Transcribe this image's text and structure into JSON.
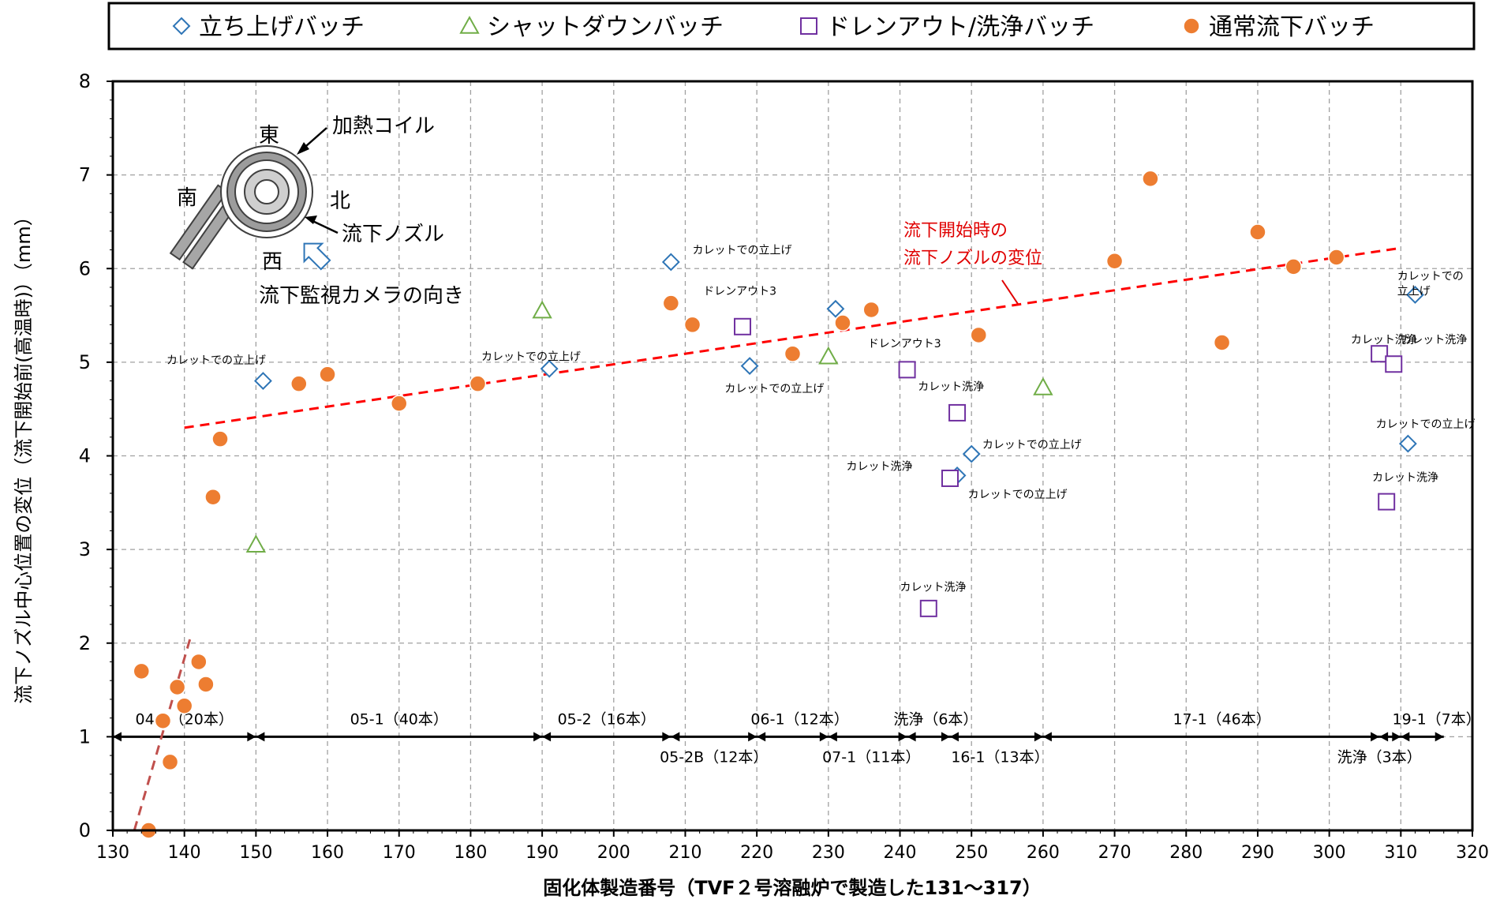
{
  "chart_data": {
    "type": "scatter",
    "title": "",
    "xlabel": "固化体製造番号（TVF２号溶融炉で製造した131～317）",
    "ylabel": "流下ノズル中心位置の変位（流下開始前(高温時)）（mm）",
    "xlim": [
      130,
      320
    ],
    "ylim": [
      0,
      8
    ],
    "x_ticks": [
      130,
      140,
      150,
      160,
      170,
      180,
      190,
      200,
      210,
      220,
      230,
      240,
      250,
      260,
      270,
      280,
      290,
      300,
      310,
      320
    ],
    "y_ticks": [
      0,
      1,
      2,
      3,
      4,
      5,
      6,
      7,
      8
    ],
    "grid": true,
    "legend_position": "top",
    "legend": [
      {
        "name": "立ち上げバッチ",
        "marker": "diamond",
        "color": "#2E75B6"
      },
      {
        "name": "シャットダウンバッチ",
        "marker": "triangle",
        "color": "#70AD47"
      },
      {
        "name": "ドレンアウト/洗浄バッチ",
        "marker": "square",
        "color": "#7030A0"
      },
      {
        "name": "通常流下バッチ",
        "marker": "circle",
        "color": "#ED7D31"
      }
    ],
    "series": [
      {
        "name": "立ち上げバッチ",
        "marker": "diamond",
        "color": "#2E75B6",
        "points": [
          [
            151,
            4.8
          ],
          [
            191,
            4.93
          ],
          [
            208,
            6.07
          ],
          [
            219,
            4.96
          ],
          [
            231,
            5.57
          ],
          [
            248,
            3.79
          ],
          [
            250,
            4.02
          ],
          [
            311,
            4.13
          ],
          [
            312,
            5.72
          ]
        ]
      },
      {
        "name": "シャットダウンバッチ",
        "marker": "triangle",
        "color": "#70AD47",
        "points": [
          [
            150,
            3.05
          ],
          [
            190,
            5.55
          ],
          [
            230,
            5.06
          ],
          [
            260,
            4.73
          ]
        ]
      },
      {
        "name": "ドレンアウト/洗浄バッチ",
        "marker": "square",
        "color": "#7030A0",
        "points": [
          [
            218,
            5.38
          ],
          [
            241,
            4.92
          ],
          [
            244,
            2.37
          ],
          [
            247,
            3.76
          ],
          [
            248,
            4.46
          ],
          [
            307,
            5.09
          ],
          [
            308,
            3.51
          ],
          [
            309,
            4.98
          ]
        ]
      },
      {
        "name": "通常流下バッチ",
        "marker": "circle",
        "color": "#ED7D31",
        "points": [
          [
            134,
            1.7
          ],
          [
            135,
            0.0
          ],
          [
            137,
            1.17
          ],
          [
            138,
            0.73
          ],
          [
            139,
            1.53
          ],
          [
            140,
            1.33
          ],
          [
            142,
            1.8
          ],
          [
            143,
            1.56
          ],
          [
            144,
            3.56
          ],
          [
            145,
            4.18
          ],
          [
            156,
            4.77
          ],
          [
            160,
            4.87
          ],
          [
            170,
            4.56
          ],
          [
            181,
            4.77
          ],
          [
            208,
            5.63
          ],
          [
            211,
            5.4
          ],
          [
            225,
            5.09
          ],
          [
            232,
            5.42
          ],
          [
            236,
            5.56
          ],
          [
            251,
            5.29
          ],
          [
            270,
            6.08
          ],
          [
            275,
            6.96
          ],
          [
            285,
            5.21
          ],
          [
            290,
            6.39
          ],
          [
            295,
            6.02
          ],
          [
            301,
            6.12
          ]
        ]
      }
    ],
    "trendlines": [
      {
        "from": [
          140,
          4.3
        ],
        "to": [
          310,
          6.22
        ],
        "color": "#FF0000",
        "style": "dashed"
      },
      {
        "from": [
          133,
          0.0
        ],
        "to": [
          141,
          2.1
        ],
        "color": "#C0504D",
        "style": "dashed"
      }
    ],
    "trend_label": [
      "流下開始時の",
      "流下ノズルの変位"
    ],
    "point_labels": [
      {
        "text": "カレットでの立上げ",
        "x": 137.5,
        "y": 4.98
      },
      {
        "text": "カレットでの立上げ",
        "x": 181.5,
        "y": 5.02
      },
      {
        "text": "カレットでの立上げ",
        "x": 211,
        "y": 6.16
      },
      {
        "text": "ドレンアウト3",
        "x": 212.5,
        "y": 5.72
      },
      {
        "text": "カレットでの立上げ",
        "x": 215.5,
        "y": 4.68
      },
      {
        "text": "ドレンアウト3",
        "x": 235.5,
        "y": 5.16
      },
      {
        "text": "カレット洗浄",
        "x": 242.5,
        "y": 4.7
      },
      {
        "text": "カレットでの立上げ",
        "x": 251.5,
        "y": 4.08
      },
      {
        "text": "カレット洗浄",
        "x": 232.5,
        "y": 3.85
      },
      {
        "text": "カレットでの立上げ",
        "x": 249.5,
        "y": 3.55
      },
      {
        "text": "カレット洗浄",
        "x": 240,
        "y": 2.56
      },
      {
        "text": "カレットでの",
        "x": 309.5,
        "y": 5.88
      },
      {
        "text": "立上げ",
        "x": 309.5,
        "y": 5.72
      },
      {
        "text": "カレット洗浄",
        "x": 303,
        "y": 5.2
      },
      {
        "text": "カレット洗浄",
        "x": 310,
        "y": 5.2
      },
      {
        "text": "カレットでの立上げ",
        "x": 306.5,
        "y": 4.3
      },
      {
        "text": "カレット洗浄",
        "x": 306,
        "y": 3.73
      }
    ],
    "campaign_spans": [
      {
        "label": "04-1（20本）",
        "from": 130,
        "to": 150,
        "label_pos": "above",
        "label_x": 140
      },
      {
        "label": "05-1（40本）",
        "from": 150,
        "to": 190,
        "label_pos": "above",
        "label_x": 170
      },
      {
        "label": "05-2（16本）",
        "from": 190,
        "to": 208,
        "label_pos": "above",
        "label_x": 199
      },
      {
        "label": "05-2B（12本）",
        "from": 208,
        "to": 220,
        "label_pos": "below",
        "label_x": 214
      },
      {
        "label": "06-1（12本）",
        "from": 220,
        "to": 230,
        "label_pos": "above",
        "label_x": 226
      },
      {
        "label": "07-1（11本）",
        "from": 230,
        "to": 241,
        "label_pos": "below",
        "label_x": 236
      },
      {
        "label": "洗浄（6本）",
        "from": 241,
        "to": 247,
        "label_pos": "above",
        "label_x": 245
      },
      {
        "label": "16-1（13本）",
        "from": 247,
        "to": 260,
        "label_pos": "below",
        "label_x": 254
      },
      {
        "label": "17-1（46本）",
        "from": 260,
        "to": 307,
        "label_pos": "above",
        "label_x": 285
      },
      {
        "label": "洗浄（3本）",
        "from": 307,
        "to": 310,
        "label_pos": "below",
        "label_x": 307
      },
      {
        "label": "19-1（7本）",
        "from": 310,
        "to": 316,
        "label_pos": "above",
        "label_x": 315
      }
    ]
  },
  "inset": {
    "east": "東",
    "south": "南",
    "north": "北",
    "west": "西",
    "coil": "加熱コイル",
    "nozzle": "流下ノズル",
    "camera": "流下監視カメラの向き"
  }
}
